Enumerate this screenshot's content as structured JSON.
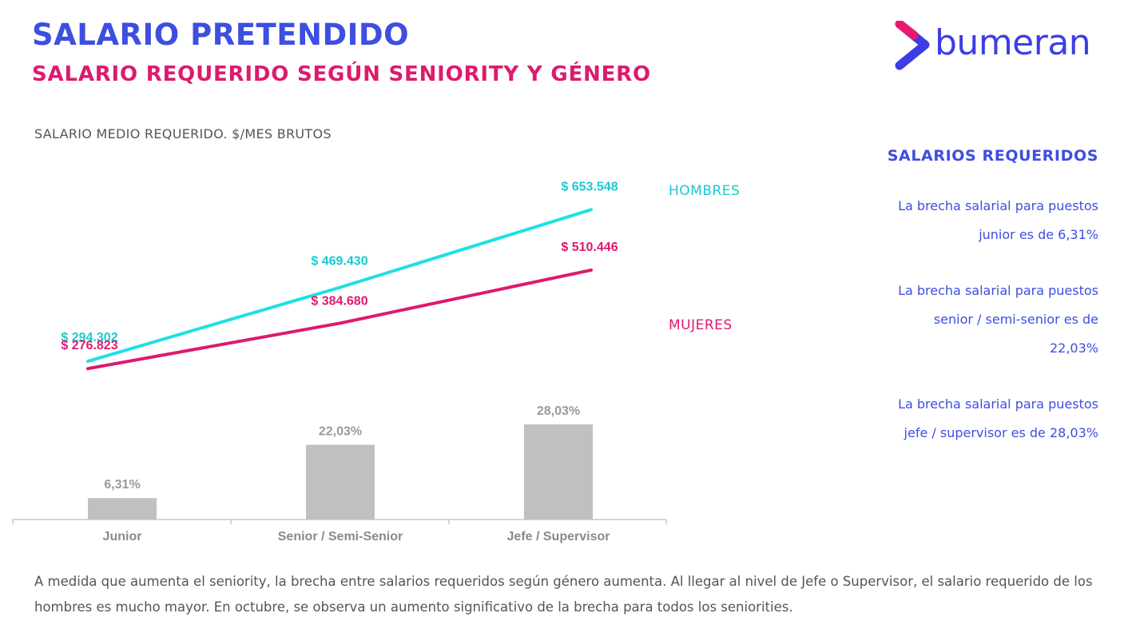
{
  "header": {
    "title": "SALARIO PRETENDIDO",
    "subtitle": "SALARIO REQUERIDO SEGÚN SENIORITY Y GÉNERO",
    "brand": "bumeran"
  },
  "colors": {
    "title": "#3d4ee0",
    "subtitle": "#dd1a6e",
    "hombres": "#1ee0e3",
    "hombres_label": "#1bc9cf",
    "mujeres": "#dd1a6e",
    "bars": "#c0c0c0",
    "bar_labels": "#9a9a9a",
    "axis": "#c8c8c8"
  },
  "chart_data": {
    "type": "line+bar",
    "title": "SALARIO MEDIO REQUERIDO. $/MES BRUTOS",
    "categories": [
      "Junior",
      "Senior / Semi-Senior",
      "Jefe / Supervisor"
    ],
    "series": [
      {
        "name": "HOMBRES",
        "type": "line",
        "values": [
          294302,
          469430,
          653548
        ],
        "labels": [
          "$ 294.302",
          "$ 469.430",
          "$ 653.548"
        ]
      },
      {
        "name": "MUJERES",
        "type": "line",
        "values": [
          276823,
          384680,
          510446
        ],
        "labels": [
          "$ 276.823",
          "$ 384.680",
          "$ 510.446"
        ]
      },
      {
        "name": "Brecha salarial",
        "type": "bar",
        "values": [
          6.31,
          22.03,
          28.03
        ],
        "labels": [
          "6,31%",
          "22,03%",
          "28,03%"
        ]
      }
    ],
    "legend_placement": "right-of-lines"
  },
  "panel": {
    "title": "SALARIOS REQUERIDOS",
    "notes": [
      [
        "La brecha salarial para puestos",
        "junior es de 6,31%"
      ],
      [
        "La brecha salarial para puestos",
        "senior / semi-senior es de",
        "22,03%"
      ],
      [
        "La brecha salarial para puestos",
        "jefe / supervisor es de 28,03%"
      ]
    ]
  },
  "footer": {
    "text": "A medida que aumenta el seniority, la brecha entre salarios requeridos según género aumenta. Al llegar al nivel de Jefe o Supervisor, el salario requerido de los hombres es mucho mayor.  En octubre, se observa un aumento significativo de la brecha para todos los seniorities."
  }
}
